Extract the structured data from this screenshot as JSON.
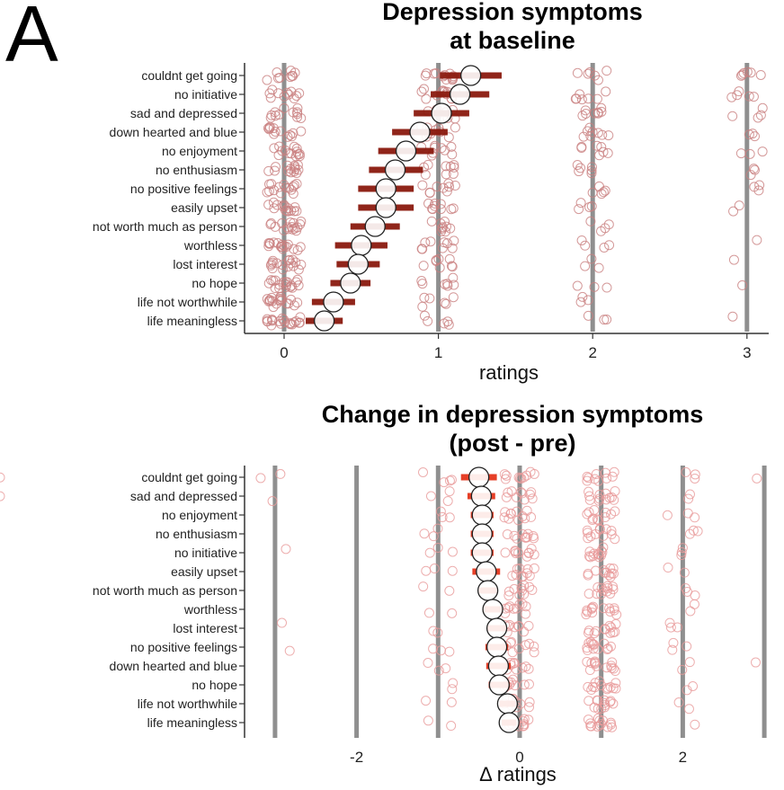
{
  "panel_label": "A",
  "chart_data": [
    {
      "type": "scatter",
      "title_line1": "Depression symptoms",
      "title_line2": "at baseline",
      "xlabel": "ratings",
      "xticks": [
        "0",
        "1",
        "2",
        "3"
      ],
      "xlim": [
        -0.15,
        3.15
      ],
      "categories": [
        "couldnt get going",
        "no initiative",
        "sad and depressed",
        "down hearted and blue",
        "no enjoyment",
        "no enthusiasm",
        "no positive feelings",
        "easily upset",
        "not worth much as person",
        "worthless",
        "lost interest",
        "no hope",
        "life not worthwhile",
        "life meaningless"
      ],
      "means": [
        1.21,
        1.14,
        1.02,
        0.88,
        0.79,
        0.72,
        0.66,
        0.66,
        0.59,
        0.5,
        0.48,
        0.43,
        0.32,
        0.26
      ],
      "ci_low": [
        1.01,
        0.95,
        0.84,
        0.7,
        0.61,
        0.55,
        0.48,
        0.48,
        0.43,
        0.33,
        0.34,
        0.3,
        0.18,
        0.14
      ],
      "ci_high": [
        1.41,
        1.33,
        1.2,
        1.06,
        0.97,
        0.9,
        0.84,
        0.84,
        0.75,
        0.67,
        0.62,
        0.56,
        0.46,
        0.38
      ],
      "point_counts": [
        [
          9,
          12,
          6,
          6
        ],
        [
          11,
          12,
          7,
          5
        ],
        [
          12,
          11,
          8,
          4
        ],
        [
          13,
          10,
          8,
          3
        ],
        [
          14,
          9,
          7,
          3
        ],
        [
          14,
          9,
          6,
          3
        ],
        [
          15,
          9,
          5,
          3
        ],
        [
          15,
          9,
          4,
          2
        ],
        [
          16,
          9,
          4,
          0
        ],
        [
          17,
          9,
          4,
          1
        ],
        [
          17,
          8,
          3,
          1
        ],
        [
          18,
          7,
          3,
          1
        ],
        [
          19,
          6,
          3,
          0
        ],
        [
          20,
          5,
          3,
          1
        ]
      ],
      "point_color": "#c98080",
      "errorbar_color": "#8b1a0e",
      "grid_color": "#8f8f8f"
    },
    {
      "type": "scatter",
      "title_line1": "Change in depression symptoms",
      "title_line2": "(post - pre)",
      "xlabel": "Δ ratings",
      "xticks": [
        "-2",
        "0",
        "2"
      ],
      "xtick_values": [
        -2,
        0,
        2
      ],
      "gridlines": [
        -3,
        -2,
        -1,
        0,
        1,
        2,
        3
      ],
      "xlim": [
        -3.3,
        3.1
      ],
      "categories": [
        "couldnt get going",
        "sad and depressed",
        "no enjoyment",
        "no enthusiasm",
        "no initiative",
        "easily upset",
        "not worth much as person",
        "worthless",
        "lost interest",
        "no positive feelings",
        "down hearted and blue",
        "no hope",
        "life not worthwhile",
        "life meaningless"
      ],
      "means": [
        -0.5,
        -0.47,
        -0.46,
        -0.46,
        -0.46,
        -0.41,
        -0.39,
        -0.33,
        -0.28,
        -0.28,
        -0.26,
        -0.25,
        -0.15,
        -0.13
      ],
      "ci_low": [
        -0.72,
        -0.64,
        -0.6,
        -0.6,
        -0.6,
        -0.58,
        -0.5,
        -0.45,
        -0.4,
        -0.42,
        -0.41,
        -0.38,
        -0.25,
        -0.22
      ],
      "ci_high": [
        -0.28,
        -0.3,
        -0.32,
        -0.32,
        -0.32,
        -0.24,
        -0.28,
        -0.21,
        -0.16,
        -0.14,
        -0.11,
        -0.12,
        -0.05,
        -0.04
      ],
      "point_counts": [
        [
          2,
          0,
          4,
          10,
          10,
          3,
          1,
          1
        ],
        [
          1,
          0,
          3,
          10,
          12,
          2,
          0,
          1
        ],
        [
          0,
          0,
          3,
          11,
          11,
          3,
          0,
          0
        ],
        [
          0,
          0,
          3,
          10,
          12,
          3,
          0,
          0
        ],
        [
          1,
          0,
          3,
          10,
          12,
          3,
          0,
          0
        ],
        [
          0,
          0,
          3,
          10,
          12,
          2,
          0,
          0
        ],
        [
          0,
          0,
          2,
          10,
          12,
          3,
          0,
          0
        ],
        [
          0,
          0,
          2,
          10,
          13,
          2,
          0,
          0
        ],
        [
          1,
          0,
          2,
          9,
          12,
          3,
          0,
          0
        ],
        [
          1,
          0,
          3,
          9,
          13,
          3,
          0,
          0
        ],
        [
          0,
          0,
          3,
          9,
          13,
          2,
          1,
          0
        ],
        [
          0,
          0,
          2,
          9,
          13,
          2,
          0,
          0
        ],
        [
          0,
          0,
          2,
          9,
          13,
          2,
          0,
          0
        ],
        [
          0,
          0,
          2,
          9,
          14,
          1,
          0,
          0
        ]
      ],
      "point_color": "#e89a9a",
      "errorbar_color": "#e5351c",
      "grid_color": "#8f8f8f"
    }
  ]
}
